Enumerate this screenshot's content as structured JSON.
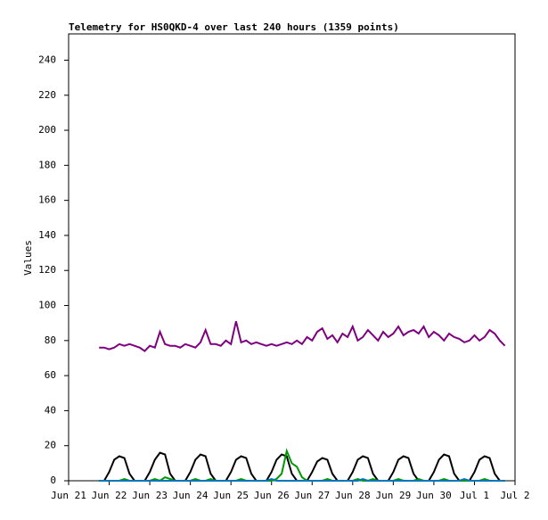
{
  "chart_data": {
    "type": "line",
    "title": "Telemetry for HS0QKD-4 over last 240 hours (1359 points)",
    "y_label": "Values",
    "xlim": [
      0,
      11
    ],
    "xticks": [
      {
        "value": 0,
        "label": "Jun 21"
      },
      {
        "value": 1,
        "label": "Jun 22"
      },
      {
        "value": 2,
        "label": "Jun 23"
      },
      {
        "value": 3,
        "label": "Jun 24"
      },
      {
        "value": 4,
        "label": "Jun 25"
      },
      {
        "value": 5,
        "label": "Jun 26"
      },
      {
        "value": 6,
        "label": "Jun 27"
      },
      {
        "value": 7,
        "label": "Jun 28"
      },
      {
        "value": 8,
        "label": "Jun 29"
      },
      {
        "value": 9,
        "label": "Jun 30"
      },
      {
        "value": 10,
        "label": "Jul 1"
      },
      {
        "value": 11,
        "label": "Jul 2"
      }
    ],
    "ylim": [
      0,
      255
    ],
    "yticks": [
      0,
      20,
      40,
      60,
      80,
      100,
      120,
      140,
      160,
      180,
      200,
      220,
      240
    ],
    "x": [
      0.75,
      0.875,
      1,
      1.125,
      1.25,
      1.375,
      1.5,
      1.625,
      1.75,
      1.875,
      2,
      2.125,
      2.25,
      2.375,
      2.5,
      2.625,
      2.75,
      2.875,
      3,
      3.125,
      3.25,
      3.375,
      3.5,
      3.625,
      3.75,
      3.875,
      4,
      4.125,
      4.25,
      4.375,
      4.5,
      4.625,
      4.75,
      4.875,
      5,
      5.125,
      5.25,
      5.375,
      5.5,
      5.625,
      5.75,
      5.875,
      6,
      6.125,
      6.25,
      6.375,
      6.5,
      6.625,
      6.75,
      6.875,
      7,
      7.125,
      7.25,
      7.375,
      7.5,
      7.625,
      7.75,
      7.875,
      8,
      8.125,
      8.25,
      8.375,
      8.5,
      8.625,
      8.75,
      8.875,
      9,
      9.125,
      9.25,
      9.375,
      9.5,
      9.625,
      9.75,
      9.875,
      10,
      10.125,
      10.25,
      10.375,
      10.5,
      10.625,
      10.75
    ],
    "series": [
      {
        "name": "purple",
        "color": "#7f007f",
        "values": [
          76,
          76,
          75,
          76,
          78,
          77,
          78,
          77,
          76,
          74,
          77,
          76,
          85,
          78,
          77,
          77,
          76,
          78,
          77,
          76,
          79,
          86,
          78,
          78,
          77,
          80,
          78,
          91,
          79,
          80,
          78,
          79,
          78,
          77,
          78,
          77,
          78,
          79,
          78,
          80,
          78,
          82,
          80,
          85,
          87,
          81,
          83,
          79,
          84,
          82,
          88,
          80,
          82,
          86,
          83,
          80,
          85,
          82,
          84,
          88,
          83,
          85,
          86,
          84,
          88,
          82,
          85,
          83,
          80,
          84,
          82,
          81,
          79,
          80,
          83,
          80,
          82,
          86,
          84,
          80,
          77
        ]
      },
      {
        "name": "black",
        "color": "#000000",
        "values": [
          0,
          0,
          5,
          12,
          14,
          13,
          4,
          0,
          0,
          0,
          5,
          12,
          16,
          15,
          4,
          0,
          0,
          0,
          5,
          12,
          15,
          14,
          4,
          0,
          0,
          0,
          5,
          12,
          14,
          13,
          4,
          0,
          0,
          0,
          5,
          12,
          15,
          14,
          4,
          0,
          0,
          0,
          5,
          11,
          13,
          12,
          4,
          0,
          0,
          0,
          5,
          12,
          14,
          13,
          4,
          0,
          0,
          0,
          5,
          12,
          14,
          13,
          4,
          0,
          0,
          0,
          5,
          12,
          15,
          14,
          4,
          0,
          0,
          0,
          5,
          12,
          14,
          13,
          4,
          0,
          0
        ]
      },
      {
        "name": "green",
        "color": "#009900",
        "values": [
          0,
          0,
          0,
          0,
          0,
          1,
          0,
          0,
          0,
          0,
          0,
          1,
          0,
          2,
          1,
          0,
          0,
          0,
          0,
          1,
          0,
          0,
          1,
          0,
          0,
          0,
          0,
          0,
          1,
          0,
          0,
          0,
          0,
          0,
          0,
          1,
          4,
          17,
          10,
          8,
          2,
          0,
          0,
          0,
          0,
          1,
          0,
          0,
          0,
          0,
          0,
          1,
          0,
          0,
          1,
          0,
          0,
          0,
          0,
          1,
          0,
          0,
          0,
          1,
          0,
          0,
          0,
          0,
          1,
          0,
          0,
          0,
          0,
          0,
          0,
          0,
          1,
          0,
          0,
          0,
          0
        ]
      },
      {
        "name": "blue",
        "color": "#0077bb",
        "values": [
          0,
          0,
          0,
          0,
          0,
          0,
          0,
          0,
          0,
          0,
          0,
          0,
          0,
          0,
          0,
          0,
          0,
          0,
          0,
          0,
          0,
          0,
          0,
          0,
          0,
          0,
          0,
          0,
          0,
          0,
          0,
          0,
          0,
          0,
          1,
          0,
          0,
          0,
          0,
          0,
          0,
          0,
          0,
          0,
          0,
          0,
          0,
          0,
          0,
          0,
          0,
          0,
          1,
          0,
          0,
          0,
          0,
          0,
          0,
          0,
          0,
          0,
          0,
          0,
          0,
          0,
          0,
          0,
          0,
          0,
          0,
          0,
          1,
          0,
          0,
          0,
          0,
          0,
          0,
          0,
          0
        ]
      }
    ]
  }
}
